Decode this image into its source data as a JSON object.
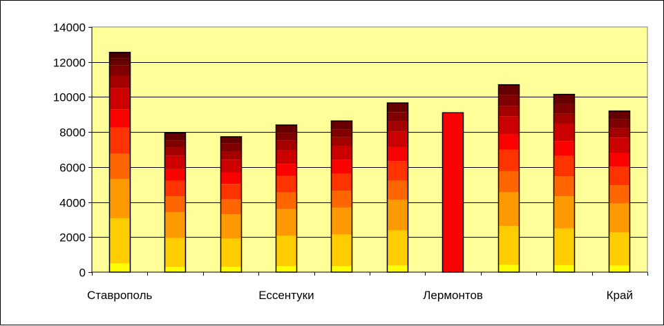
{
  "chart_data": {
    "type": "bar",
    "stacked": true,
    "title": "",
    "xlabel": "",
    "ylabel": "",
    "ylim": [
      0,
      14000
    ],
    "yticks": [
      0,
      2000,
      4000,
      6000,
      8000,
      10000,
      12000,
      14000
    ],
    "ytick_labels": [
      "0",
      "2000",
      "4000",
      "6000",
      "8000",
      "10000",
      "12000",
      "14000"
    ],
    "categories": [
      "Ставрополь",
      "",
      "",
      "Ессентуки",
      "",
      "",
      "Лермонтов",
      "",
      "",
      "Край"
    ],
    "totals": [
      12550,
      7950,
      7730,
      8400,
      8630,
      9660,
      9100,
      10700,
      10150,
      9200
    ],
    "segment_bounds": [
      [
        0,
        500,
        3080,
        5320,
        6760,
        8250,
        9300,
        10500,
        11200,
        11800,
        12200,
        12550
      ],
      [
        0,
        300,
        1950,
        3420,
        4330,
        5220,
        5880,
        6650,
        7120,
        7520,
        7950
      ],
      [
        0,
        300,
        1920,
        3300,
        4150,
        5040,
        5680,
        6420,
        6900,
        7350,
        7730
      ],
      [
        0,
        350,
        2080,
        3600,
        4550,
        5500,
        6180,
        6980,
        7500,
        7950,
        8400
      ],
      [
        0,
        350,
        2150,
        3680,
        4650,
        5640,
        6400,
        7180,
        7700,
        8150,
        8630
      ],
      [
        0,
        380,
        2380,
        4130,
        5220,
        6340,
        7140,
        8030,
        8620,
        9140,
        9660
      ],
      [
        0,
        9100
      ],
      [
        0,
        420,
        2640,
        4560,
        5760,
        7000,
        7870,
        8900,
        9500,
        10120,
        10700
      ],
      [
        0,
        400,
        2500,
        4330,
        5470,
        6640,
        7480,
        8480,
        9040,
        9600,
        10150
      ],
      [
        0,
        380,
        2270,
        3920,
        4960,
        6030,
        6800,
        7680,
        8220,
        8720,
        9200
      ]
    ],
    "segment_colors": [
      "#FFFF00",
      "#FFCC00",
      "#FF9900",
      "#FF6600",
      "#FF3300",
      "#FF0000",
      "#CC0000",
      "#A50000",
      "#800000",
      "#660000",
      "#4D0000"
    ],
    "single_segment_color": "#FF0000",
    "plot_background": "#FFFF99",
    "grid": true,
    "legend": "none"
  }
}
